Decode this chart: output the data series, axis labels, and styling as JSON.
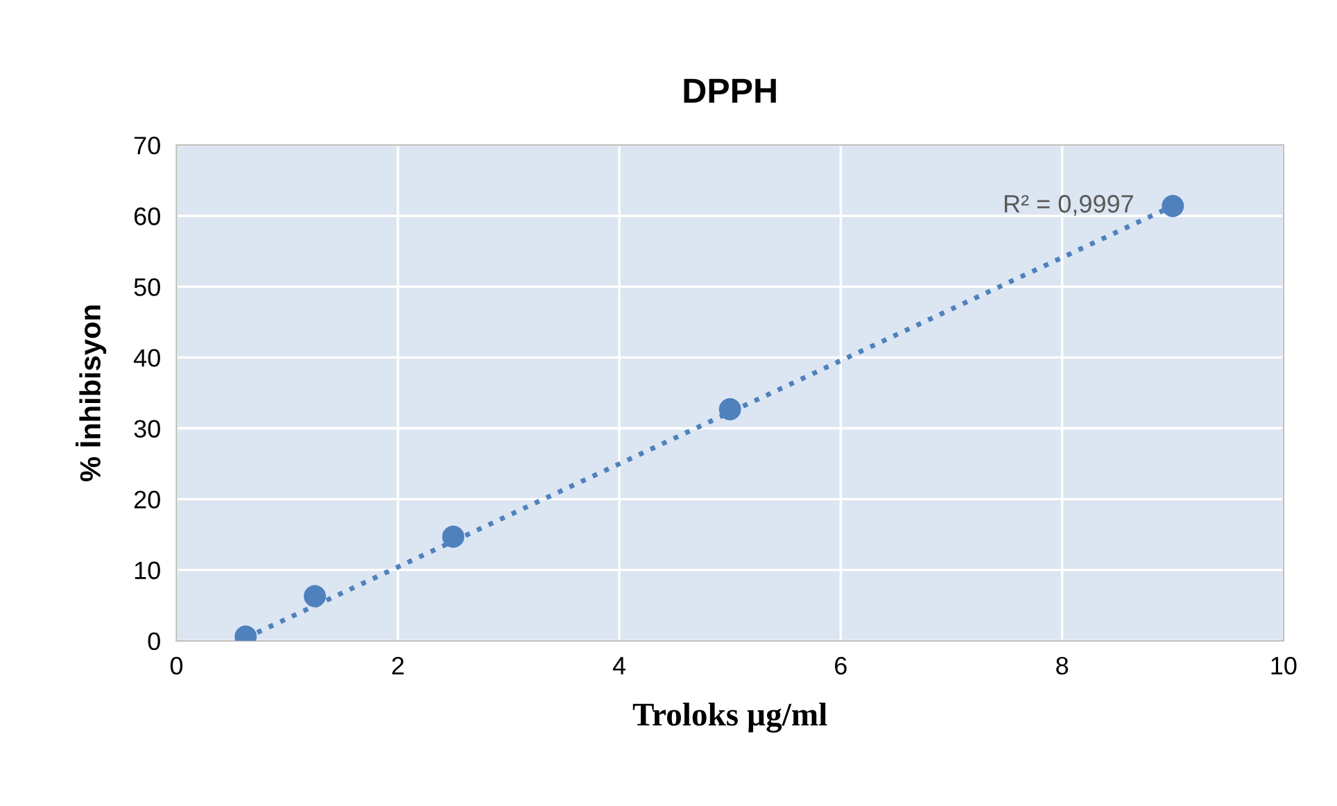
{
  "chart_data": {
    "type": "scatter",
    "title": "DPPH",
    "xlabel": "Troloks µg/ml",
    "ylabel": "% İnhibisyon",
    "series": [
      {
        "color": "#4f81bd",
        "marker": "circle",
        "x": [
          0.625,
          1.25,
          2.5,
          5,
          9
        ],
        "values": [
          0.6,
          6.3,
          14.7,
          32.7,
          61.4
        ]
      },
      {
        "type": "line",
        "color": "#4f81bd",
        "line_style": "dotted",
        "x": [
          0.625,
          9
        ],
        "values": [
          0.4,
          61.4
        ]
      }
    ],
    "annotations": [
      {
        "text": "R² = 0,9997",
        "x": 9,
        "y": 61.4
      }
    ],
    "xlim": [
      0,
      10
    ],
    "xticks": [
      0,
      2,
      4,
      6,
      8,
      10
    ],
    "ylim": [
      0,
      70
    ],
    "yticks": [
      0,
      10,
      20,
      30,
      40,
      50,
      60,
      70
    ],
    "grid": true,
    "legend": false
  }
}
